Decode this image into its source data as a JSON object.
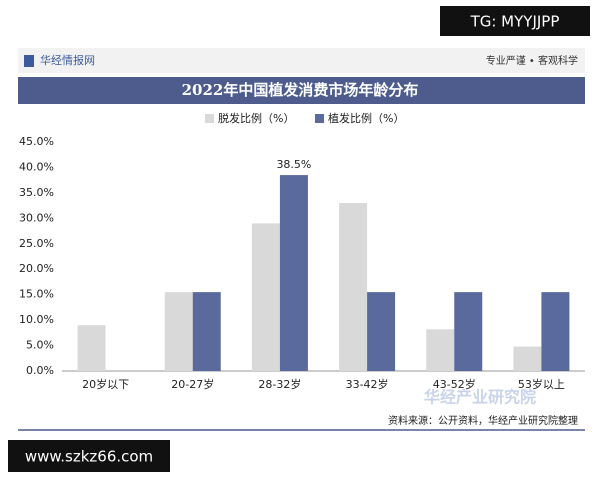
{
  "header": {
    "brand": "华经情报网",
    "slogan": "专业严谨 • 客观科学"
  },
  "watermarks": {
    "top": "TG: MYYJJPP",
    "bottom": "www.szkz66.com",
    "brand": "华经产业研究院"
  },
  "source": "资料来源：公开资料，华经产业研究院整理",
  "chart_data": {
    "type": "bar",
    "title": "2022年中国植发消费市场年龄分布",
    "categories": [
      "20岁以下",
      "20-27岁",
      "28-32岁",
      "33-42岁",
      "43-52岁",
      "53岁以上"
    ],
    "series": [
      {
        "name": "脱发比例（%）",
        "color": "#d9d9d9",
        "values": [
          9.0,
          15.5,
          29.0,
          33.0,
          8.2,
          4.8
        ]
      },
      {
        "name": "植发比例（%）",
        "color": "#5b6a9c",
        "values": [
          0,
          15.5,
          38.5,
          15.5,
          15.5,
          15.5
        ],
        "value_labels": [
          null,
          null,
          "38.5%",
          null,
          null,
          null
        ]
      }
    ],
    "ylim": [
      0,
      45
    ],
    "yticks": [
      {
        "value": 0,
        "label": "0.0%"
      },
      {
        "value": 5,
        "label": "5.0%"
      },
      {
        "value": 10,
        "label": "10.0%"
      },
      {
        "value": 15,
        "label": "15.0%"
      },
      {
        "value": 20,
        "label": "20.0%"
      },
      {
        "value": 25,
        "label": "25.0%"
      },
      {
        "value": 30,
        "label": "30.0%"
      },
      {
        "value": 35,
        "label": "35.0%"
      },
      {
        "value": 40,
        "label": "40.0%"
      },
      {
        "value": 45,
        "label": "45.0%"
      }
    ],
    "grid": false
  }
}
